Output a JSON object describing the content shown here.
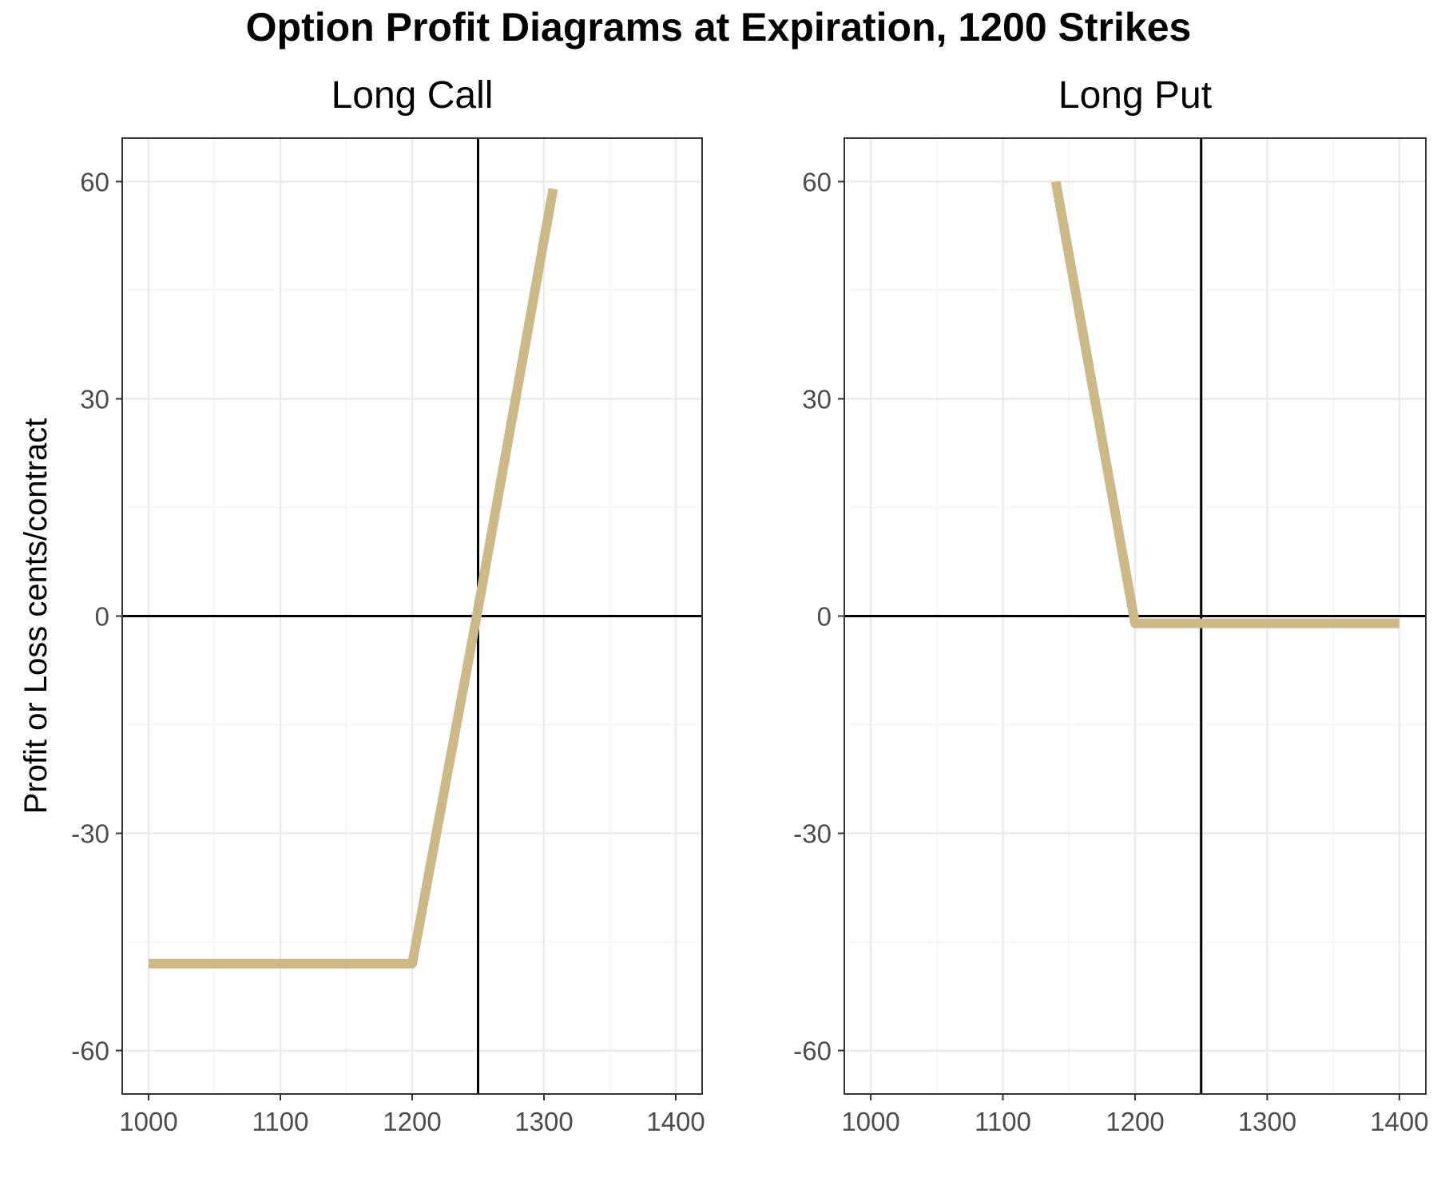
{
  "title": "Option Profit Diagrams at Expiration, 1200 Strikes",
  "colors": {
    "line": "#cdb888",
    "grid_major": "#ebebeb",
    "grid_minor": "#f4f4f4",
    "reference": "#000000",
    "border": "#333333",
    "tick_text": "#4d4d4d"
  },
  "chart_data": [
    {
      "type": "line",
      "title": "Long Call",
      "xlabel": "",
      "ylabel": "Profit or Loss cents/contract",
      "xlim": [
        980,
        1420
      ],
      "ylim": [
        -66,
        66
      ],
      "x_ticks": [
        1000,
        1100,
        1200,
        1300,
        1400
      ],
      "x_tick_labels": [
        "1000",
        "1100",
        "1200",
        "1300",
        "1400"
      ],
      "y_ticks": [
        60,
        30,
        0,
        -30,
        -60
      ],
      "y_tick_labels": [
        "60",
        "30",
        "0",
        "-30",
        "-60"
      ],
      "grid": true,
      "vline": 1250,
      "hline": 0,
      "series": [
        {
          "x": [
            1000,
            1200,
            1250,
            1307
          ],
          "y": [
            -48,
            -48,
            1,
            59
          ]
        }
      ]
    },
    {
      "type": "line",
      "title": "Long Put",
      "xlabel": "",
      "ylabel": "",
      "xlim": [
        980,
        1420
      ],
      "ylim": [
        -66,
        66
      ],
      "x_ticks": [
        1000,
        1100,
        1200,
        1300,
        1400
      ],
      "x_tick_labels": [
        "1000",
        "1100",
        "1200",
        "1300",
        "1400"
      ],
      "y_ticks": [
        60,
        30,
        0,
        -30,
        -60
      ],
      "y_tick_labels": [
        "60",
        "30",
        "0",
        "-30",
        "-60"
      ],
      "grid": true,
      "vline": 1250,
      "hline": 0,
      "series": [
        {
          "x": [
            1140,
            1200,
            1400
          ],
          "y": [
            60,
            -1,
            -1
          ]
        }
      ]
    }
  ]
}
